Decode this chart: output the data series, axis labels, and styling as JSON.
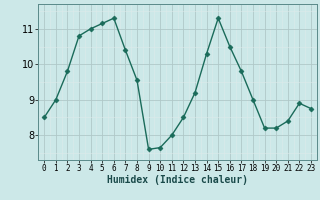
{
  "x": [
    0,
    1,
    2,
    3,
    4,
    5,
    6,
    7,
    8,
    9,
    10,
    11,
    12,
    13,
    14,
    15,
    16,
    17,
    18,
    19,
    20,
    21,
    22,
    23
  ],
  "y": [
    8.5,
    9.0,
    9.8,
    10.8,
    11.0,
    11.15,
    11.3,
    10.4,
    9.55,
    7.6,
    7.65,
    8.0,
    8.5,
    9.2,
    10.3,
    11.3,
    10.5,
    9.8,
    9.0,
    8.2,
    8.2,
    8.4,
    8.9,
    8.75
  ],
  "line_color": "#1a6b5a",
  "marker": "D",
  "markersize": 2.5,
  "linewidth": 1.0,
  "xlabel": "Humidex (Indice chaleur)",
  "xlabel_fontsize": 7,
  "bg_color": "#cce8e8",
  "grid_major_color": "#b0c8c8",
  "grid_minor_color": "#ddeaea",
  "yticks": [
    8,
    9,
    10,
    11
  ],
  "ylim": [
    7.3,
    11.7
  ],
  "xlim": [
    -0.5,
    23.5
  ],
  "xticks": [
    0,
    1,
    2,
    3,
    4,
    5,
    6,
    7,
    8,
    9,
    10,
    11,
    12,
    13,
    14,
    15,
    16,
    17,
    18,
    19,
    20,
    21,
    22,
    23
  ],
  "ytick_fontsize": 7,
  "xtick_fontsize": 5.5
}
